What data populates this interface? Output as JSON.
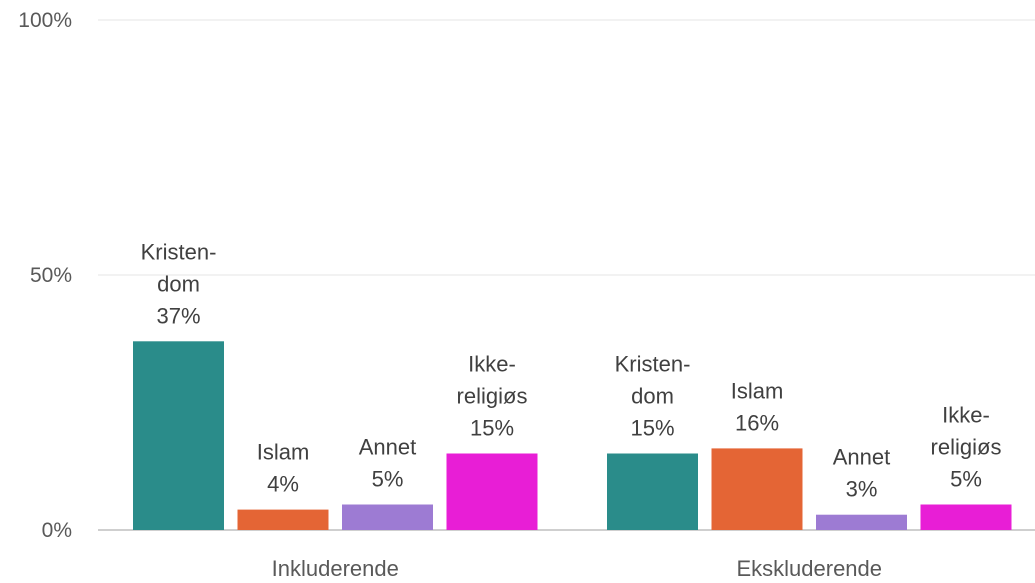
{
  "chart_data": {
    "type": "bar",
    "title": "",
    "xlabel": "",
    "ylabel": "",
    "ylim": [
      0,
      100
    ],
    "y_ticks": [
      "0%",
      "50%",
      "100%"
    ],
    "grid": true,
    "legend": "none",
    "categories": [
      "Inkluderende",
      "Ekskluderende"
    ],
    "groups": [
      {
        "category": "Inkluderende",
        "bars": [
          {
            "label": [
              "Kristen-",
              "dom"
            ],
            "value": 37,
            "value_label": "37%",
            "color": "#2a8c8a"
          },
          {
            "label": [
              "Islam"
            ],
            "value": 4,
            "value_label": "4%",
            "color": "#e46535"
          },
          {
            "label": [
              "Annet"
            ],
            "value": 5,
            "value_label": "5%",
            "color": "#9d7bd3"
          },
          {
            "label": [
              "Ikke-",
              "religiøs"
            ],
            "value": 15,
            "value_label": "15%",
            "color": "#e81ed6"
          }
        ]
      },
      {
        "category": "Ekskluderende",
        "bars": [
          {
            "label": [
              "Kristen-",
              "dom"
            ],
            "value": 15,
            "value_label": "15%",
            "color": "#2a8c8a"
          },
          {
            "label": [
              "Islam"
            ],
            "value": 16,
            "value_label": "16%",
            "color": "#e46535"
          },
          {
            "label": [
              "Annet"
            ],
            "value": 3,
            "value_label": "3%",
            "color": "#9d7bd3"
          },
          {
            "label": [
              "Ikke-",
              "religiøs"
            ],
            "value": 5,
            "value_label": "5%",
            "color": "#e81ed6"
          }
        ]
      }
    ]
  }
}
